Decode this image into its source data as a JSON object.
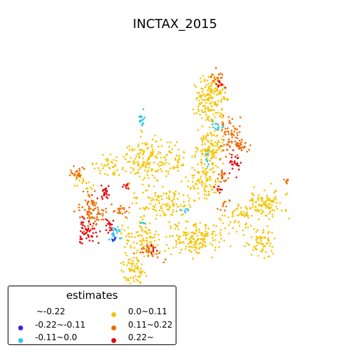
{
  "title": "INCTAX_2015",
  "legend": {
    "title": "estimates",
    "items": [
      {
        "label": "~-0.22",
        "color": ""
      },
      {
        "label": "-0.22~-0.11",
        "color": "#2b2bdf"
      },
      {
        "label": "-0.11~0.0",
        "color": "#35c6ee"
      },
      {
        "label": "0.0~0.11",
        "color": "#f6c400"
      },
      {
        "label": "0.11~0.22",
        "color": "#f06a00"
      },
      {
        "label": "0.22~",
        "color": "#e8000b"
      }
    ]
  }
}
